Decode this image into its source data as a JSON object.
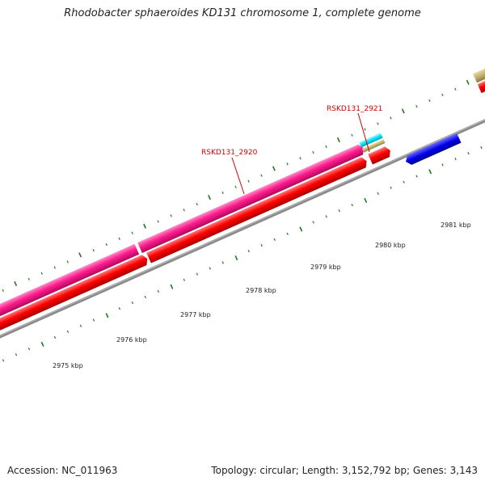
{
  "title": "Rhodobacter sphaeroides KD131 chromosome 1, complete genome",
  "accession": "Accession: NC_011963",
  "summary": "Topology: circular; Length: 3,152,792 bp; Genes: 3,143",
  "colors": {
    "forward_cds": "#ff1b8d",
    "reverse_cds": "#ff0000",
    "other_gene": "#0000ee",
    "rna": "#00e5ff",
    "misc": "#c2b36f",
    "backbone": "#888888",
    "tick": "#1f7a1f",
    "label": "#d10000"
  },
  "kbp_labels": [
    {
      "text": "2975 kbp",
      "kbp": 2975
    },
    {
      "text": "2976 kbp",
      "kbp": 2976
    },
    {
      "text": "2977 kbp",
      "kbp": 2977
    },
    {
      "text": "2978 kbp",
      "kbp": 2978
    },
    {
      "text": "2979 kbp",
      "kbp": 2979
    },
    {
      "text": "2980 kbp",
      "kbp": 2980
    },
    {
      "text": "2981 kbp",
      "kbp": 2981
    }
  ],
  "gene_labels": [
    {
      "text": "RSKD131_2920"
    },
    {
      "text": "RSKD131_2921"
    }
  ]
}
